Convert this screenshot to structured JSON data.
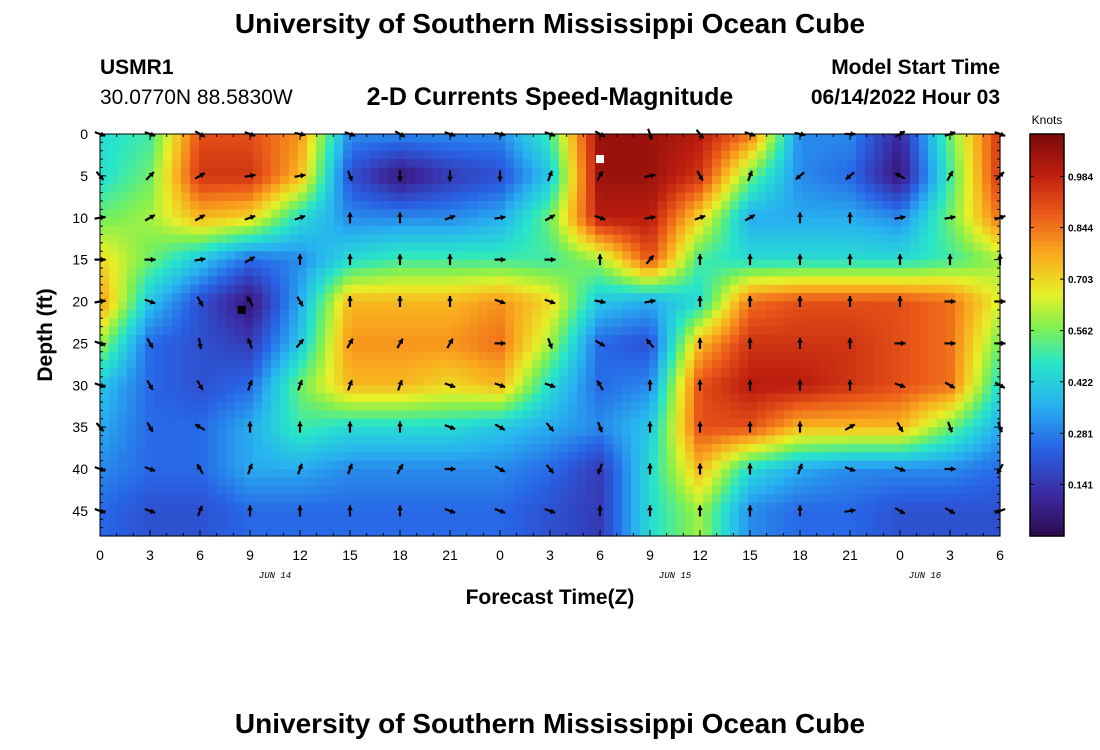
{
  "header": {
    "title": "University of Southern Mississippi Ocean Cube",
    "station": "USMR1",
    "coords": "30.0770N  88.5830W",
    "subtitle": "2-D Currents Speed-Magnitude",
    "model_label": "Model Start Time",
    "model_time": "06/14/2022 Hour 03"
  },
  "footer": {
    "title": "University of Southern Mississippi Ocean Cube"
  },
  "colors": {
    "low": "#2e0a4c",
    "high": "#7a0a0a"
  },
  "chart_data": {
    "type": "heatmap",
    "title": "2-D Currents Speed-Magnitude",
    "xlabel": "Forecast Time(Z)",
    "ylabel": "Depth (ft)",
    "x_tick_labels": [
      "0",
      "3",
      "6",
      "9",
      "12",
      "15",
      "18",
      "21",
      "0",
      "3",
      "6",
      "9",
      "12",
      "15",
      "18",
      "21",
      "0",
      "3",
      "6"
    ],
    "x_hours": [
      0,
      3,
      6,
      9,
      12,
      15,
      18,
      21,
      24,
      27,
      30,
      33,
      36,
      39,
      42,
      45,
      48,
      51,
      54
    ],
    "date_labels": [
      {
        "label": "JUN 14",
        "hour": 10.5
      },
      {
        "label": "JUN 15",
        "hour": 34.5
      },
      {
        "label": "JUN 16",
        "hour": 49.5
      }
    ],
    "y_tick_labels": [
      "0",
      "5",
      "10",
      "15",
      "20",
      "25",
      "30",
      "35",
      "40",
      "45"
    ],
    "y_depths": [
      0,
      5,
      10,
      15,
      20,
      25,
      30,
      35,
      40,
      45
    ],
    "xlim": [
      0,
      54
    ],
    "ylim": [
      48,
      0
    ],
    "colorbar": {
      "label": "Knots",
      "ticks": [
        "0.984",
        "0.844",
        "0.703",
        "0.562",
        "0.422",
        "0.281",
        "0.141"
      ],
      "tick_values": [
        0.984,
        0.844,
        0.703,
        0.562,
        0.422,
        0.281,
        0.141
      ],
      "range": [
        0.0,
        1.1
      ]
    },
    "speed_grid": {
      "x_hours": [
        0,
        3,
        6,
        9,
        12,
        15,
        18,
        21,
        24,
        27,
        30,
        33,
        36,
        39,
        42,
        45,
        48,
        51,
        54
      ],
      "depths": [
        0,
        5,
        10,
        15,
        20,
        25,
        30,
        35,
        40,
        45
      ],
      "values": [
        [
          0.45,
          0.5,
          0.9,
          0.9,
          0.8,
          0.3,
          0.3,
          0.3,
          0.3,
          0.5,
          1.05,
          1.05,
          1.0,
          0.85,
          0.3,
          0.3,
          0.1,
          0.55,
          0.95
        ],
        [
          0.45,
          0.55,
          0.95,
          0.95,
          0.75,
          0.2,
          0.05,
          0.15,
          0.2,
          0.4,
          1.05,
          1.05,
          0.95,
          0.55,
          0.3,
          0.25,
          0.05,
          0.5,
          0.95
        ],
        [
          0.55,
          0.6,
          0.75,
          0.7,
          0.45,
          0.3,
          0.3,
          0.3,
          0.35,
          0.55,
          1.0,
          1.0,
          0.7,
          0.35,
          0.35,
          0.35,
          0.3,
          0.55,
          0.85
        ],
        [
          0.7,
          0.55,
          0.4,
          0.25,
          0.3,
          0.45,
          0.5,
          0.5,
          0.5,
          0.5,
          0.6,
          0.9,
          0.5,
          0.45,
          0.45,
          0.45,
          0.45,
          0.5,
          0.6
        ],
        [
          0.8,
          0.4,
          0.2,
          0.05,
          0.35,
          0.75,
          0.75,
          0.75,
          0.8,
          0.7,
          0.4,
          0.35,
          0.45,
          0.85,
          0.9,
          0.9,
          0.9,
          0.85,
          0.65
        ],
        [
          0.6,
          0.25,
          0.2,
          0.15,
          0.4,
          0.8,
          0.8,
          0.8,
          0.85,
          0.6,
          0.25,
          0.2,
          0.75,
          0.95,
          0.95,
          0.95,
          0.9,
          0.85,
          0.55
        ],
        [
          0.4,
          0.25,
          0.2,
          0.25,
          0.55,
          0.75,
          0.75,
          0.7,
          0.75,
          0.45,
          0.25,
          0.3,
          0.9,
          1.0,
          1.0,
          0.95,
          0.9,
          0.85,
          0.45
        ],
        [
          0.35,
          0.25,
          0.25,
          0.35,
          0.5,
          0.45,
          0.45,
          0.45,
          0.4,
          0.35,
          0.3,
          0.4,
          0.9,
          0.9,
          0.75,
          0.75,
          0.75,
          0.55,
          0.35
        ],
        [
          0.3,
          0.25,
          0.25,
          0.35,
          0.35,
          0.3,
          0.3,
          0.3,
          0.3,
          0.25,
          0.15,
          0.45,
          0.75,
          0.45,
          0.35,
          0.3,
          0.3,
          0.3,
          0.25
        ],
        [
          0.25,
          0.2,
          0.2,
          0.25,
          0.25,
          0.25,
          0.25,
          0.25,
          0.25,
          0.2,
          0.15,
          0.45,
          0.6,
          0.3,
          0.25,
          0.25,
          0.2,
          0.2,
          0.2
        ]
      ]
    },
    "vectors": {
      "x_hours": [
        0,
        3,
        6,
        9,
        12,
        15,
        18,
        21,
        24,
        27,
        30,
        33,
        36,
        39,
        42,
        45,
        48,
        51,
        54
      ],
      "depths": [
        0,
        5,
        10,
        15,
        20,
        25,
        30,
        35,
        40,
        45
      ],
      "directions_deg": [
        [
          110,
          110,
          120,
          110,
          100,
          110,
          120,
          110,
          100,
          110,
          120,
          160,
          140,
          110,
          100,
          90,
          60,
          70,
          110
        ],
        [
          140,
          45,
          60,
          80,
          80,
          160,
          180,
          180,
          180,
          20,
          30,
          80,
          150,
          20,
          230,
          230,
          300,
          30,
          45
        ],
        [
          80,
          60,
          60,
          70,
          70,
          0,
          0,
          70,
          80,
          60,
          110,
          80,
          70,
          60,
          0,
          0,
          80,
          80,
          70
        ],
        [
          90,
          90,
          80,
          60,
          0,
          0,
          0,
          0,
          90,
          90,
          0,
          40,
          0,
          0,
          0,
          0,
          0,
          0,
          0
        ],
        [
          80,
          110,
          150,
          330,
          150,
          0,
          0,
          0,
          110,
          110,
          100,
          80,
          0,
          0,
          0,
          0,
          0,
          90,
          90
        ],
        [
          110,
          150,
          170,
          340,
          40,
          30,
          30,
          30,
          90,
          160,
          120,
          320,
          0,
          0,
          0,
          0,
          90,
          90,
          90
        ],
        [
          110,
          150,
          150,
          20,
          20,
          20,
          20,
          110,
          110,
          110,
          330,
          0,
          0,
          0,
          0,
          0,
          110,
          120,
          120
        ],
        [
          140,
          150,
          300,
          0,
          0,
          0,
          0,
          110,
          120,
          140,
          160,
          0,
          0,
          0,
          0,
          60,
          150,
          160,
          160
        ],
        [
          110,
          110,
          330,
          20,
          20,
          20,
          30,
          90,
          120,
          140,
          200,
          0,
          0,
          0,
          20,
          110,
          110,
          90,
          210
        ],
        [
          110,
          110,
          20,
          0,
          0,
          0,
          0,
          110,
          110,
          110,
          0,
          0,
          0,
          0,
          0,
          80,
          120,
          120,
          250
        ]
      ]
    },
    "markers": [
      {
        "hour": 30,
        "depth": 3,
        "color": "#ffffff"
      },
      {
        "hour": 8.5,
        "depth": 21,
        "color": "#000000"
      }
    ]
  }
}
